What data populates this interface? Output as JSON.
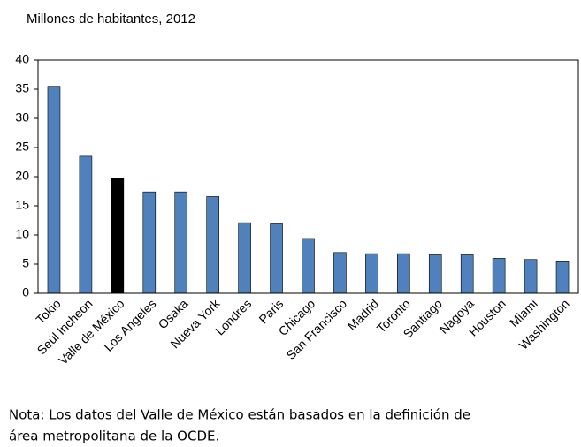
{
  "chart_data": {
    "type": "bar",
    "title": "Millones de habitantes, 2012",
    "categories": [
      "Tokio",
      "Seúl Incheon",
      "Valle de México",
      "Los Angeles",
      "Osaka",
      "Nueva York",
      "Londres",
      "Paris",
      "Chicago",
      "San Francisco",
      "Madrid",
      "Toronto",
      "Santiago",
      "Nagoya",
      "Houston",
      "Miami",
      "Washington"
    ],
    "values": [
      35.5,
      23.5,
      19.8,
      17.4,
      17.4,
      16.6,
      12.1,
      11.9,
      9.4,
      7.0,
      6.8,
      6.8,
      6.6,
      6.6,
      6.0,
      5.8,
      5.4
    ],
    "colors": [
      "#4f81bd",
      "#4f81bd",
      "#000000",
      "#4f81bd",
      "#4f81bd",
      "#4f81bd",
      "#4f81bd",
      "#4f81bd",
      "#4f81bd",
      "#4f81bd",
      "#4f81bd",
      "#4f81bd",
      "#4f81bd",
      "#4f81bd",
      "#4f81bd",
      "#4f81bd",
      "#4f81bd"
    ],
    "ylim": [
      0,
      40
    ],
    "yticks": [
      0,
      5,
      10,
      15,
      20,
      25,
      30,
      35,
      40
    ],
    "note": [
      "Nota: Los datos del Valle de México están basados en la definición de",
      "área metropolitana de la OCDE."
    ]
  }
}
